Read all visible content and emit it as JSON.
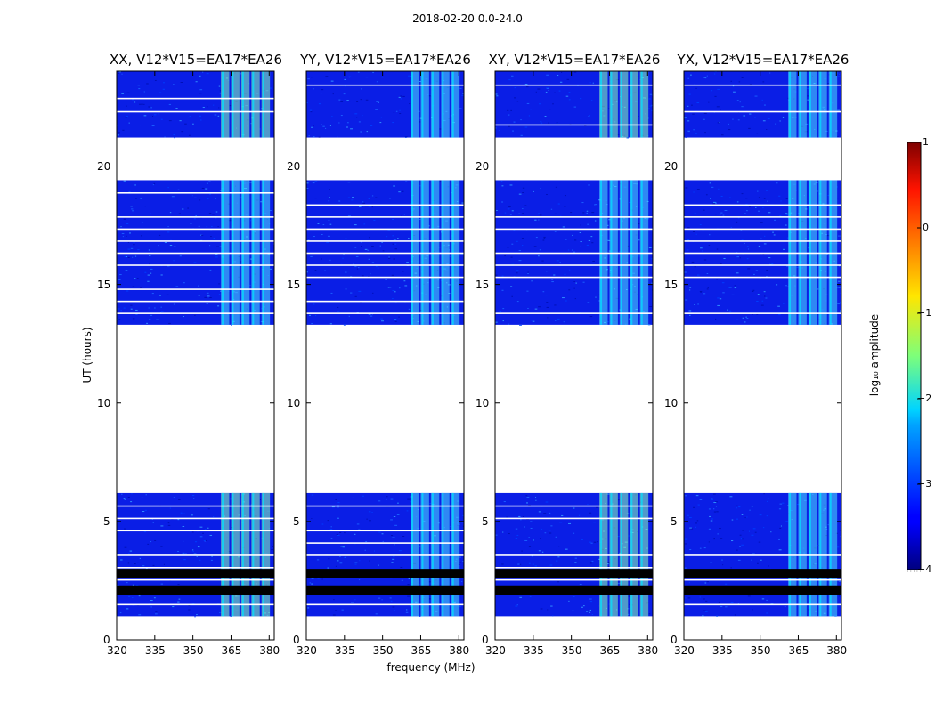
{
  "figure_title": "2018-02-20 0.0-24.0",
  "chart_data": {
    "type": "heatmap",
    "title": "2018-02-20 0.0-24.0",
    "xlabel": "frequency (MHz)",
    "ylabel": "UT (hours)",
    "xlim": [
      320,
      382
    ],
    "ylim": [
      0,
      24
    ],
    "x_ticks": [
      320,
      335,
      350,
      365,
      380
    ],
    "y_ticks": [
      0,
      5,
      10,
      15,
      20
    ],
    "panels": [
      {
        "title": "XX, V12*V15=EA17*EA26",
        "polarization": "XX"
      },
      {
        "title": "YY, V12*V15=EA17*EA26",
        "polarization": "YY"
      },
      {
        "title": "XY, V12*V15=EA17*EA26",
        "polarization": "XY"
      },
      {
        "title": "YX, V12*V15=EA17*EA26",
        "polarization": "YX"
      }
    ],
    "data_segments_ut_hours": [
      [
        1.0,
        6.2
      ],
      [
        13.3,
        19.4
      ],
      [
        21.2,
        24.0
      ]
    ],
    "blanked_rows_ut_hours": [
      [
        1.9,
        2.3
      ],
      [
        2.6,
        3.0
      ]
    ],
    "rfi_band_mhz": [
      361,
      381
    ],
    "colorbar": {
      "label": "log₁₀ amplitude",
      "min": -4,
      "max": 1,
      "ticks": [
        1,
        0,
        -1,
        -2,
        -3,
        -4
      ],
      "colormap": "jet"
    }
  }
}
